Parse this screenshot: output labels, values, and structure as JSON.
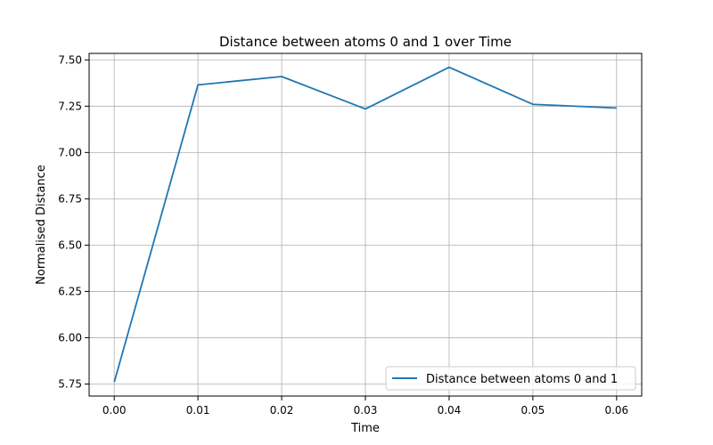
{
  "chart_data": {
    "type": "line",
    "title": "Distance between atoms 0 and 1 over Time",
    "xlabel": "Time",
    "ylabel": "Normalised Distance",
    "xlim": [
      -0.003,
      0.063
    ],
    "ylim": [
      5.685,
      7.535
    ],
    "x_ticks": [
      0.0,
      0.01,
      0.02,
      0.03,
      0.04,
      0.05,
      0.06
    ],
    "x_tick_labels": [
      "0.00",
      "0.01",
      "0.02",
      "0.03",
      "0.04",
      "0.05",
      "0.06"
    ],
    "y_ticks": [
      5.75,
      6.0,
      6.25,
      6.5,
      6.75,
      7.0,
      7.25,
      7.5
    ],
    "y_tick_labels": [
      "5.75",
      "6.00",
      "6.25",
      "6.50",
      "6.75",
      "7.00",
      "7.25",
      "7.50"
    ],
    "grid": true,
    "legend_position": "lower-right",
    "series": [
      {
        "name": "Distance between atoms 0 and 1",
        "color": "#1f77b4",
        "x": [
          0.0,
          0.01,
          0.02,
          0.03,
          0.04,
          0.05,
          0.06
        ],
        "y": [
          5.76,
          7.365,
          7.41,
          7.235,
          7.46,
          7.26,
          7.24
        ]
      }
    ]
  }
}
